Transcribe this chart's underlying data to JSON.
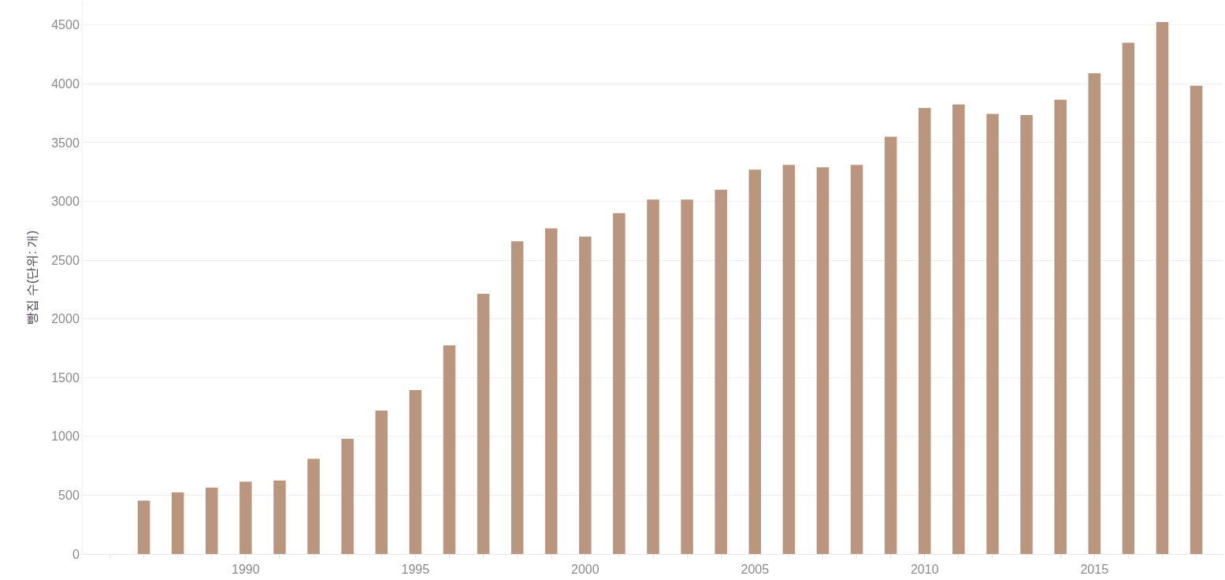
{
  "chart_data": {
    "type": "bar",
    "ylabel": "빵집 수(단위: 개)",
    "x": [
      1987,
      1988,
      1989,
      1990,
      1991,
      1992,
      1993,
      1994,
      1995,
      1996,
      1997,
      1998,
      1999,
      2000,
      2001,
      2002,
      2003,
      2004,
      2005,
      2006,
      2007,
      2008,
      2009,
      2010,
      2011,
      2012,
      2013,
      2014,
      2015,
      2016,
      2017,
      2018
    ],
    "values": [
      455,
      525,
      565,
      615,
      625,
      810,
      980,
      1220,
      1395,
      1775,
      2215,
      2660,
      2770,
      2700,
      2900,
      3015,
      3015,
      3100,
      3270,
      3310,
      3290,
      3310,
      3550,
      3795,
      3825,
      3745,
      3735,
      3865,
      4090,
      4350,
      4525,
      3985
    ],
    "color": "#bb967f",
    "xlim": [
      1985.2,
      2018.8
    ],
    "xticks": [
      {
        "value": 1986,
        "label": null
      },
      {
        "value": 1987,
        "label": null
      },
      {
        "value": 1988,
        "label": null
      },
      {
        "value": 1989,
        "label": null
      },
      1990,
      {
        "value": 1991,
        "label": null
      },
      {
        "value": 1992,
        "label": null
      },
      {
        "value": 1993,
        "label": null
      },
      {
        "value": 1994,
        "label": null
      },
      1995,
      {
        "value": 1996,
        "label": null
      },
      {
        "value": 1997,
        "label": null
      },
      {
        "value": 1998,
        "label": null
      },
      {
        "value": 1999,
        "label": null
      },
      2000,
      {
        "value": 2001,
        "label": null
      },
      {
        "value": 2002,
        "label": null
      },
      {
        "value": 2003,
        "label": null
      },
      {
        "value": 2004,
        "label": null
      },
      2005,
      {
        "value": 2006,
        "label": null
      },
      {
        "value": 2007,
        "label": null
      },
      {
        "value": 2008,
        "label": null
      },
      {
        "value": 2009,
        "label": null
      },
      2010,
      {
        "value": 2011,
        "label": null
      },
      {
        "value": 2012,
        "label": null
      },
      {
        "value": 2013,
        "label": null
      },
      {
        "value": 2014,
        "label": null
      },
      2015,
      {
        "value": 2016,
        "label": null
      },
      {
        "value": 2017,
        "label": null
      },
      {
        "value": 2018,
        "label": null
      }
    ],
    "ylim": [
      0,
      4700
    ],
    "yticks": [
      0,
      500,
      1000,
      1500,
      2000,
      2500,
      3000,
      3500,
      4000,
      4500
    ],
    "grid": "y"
  }
}
